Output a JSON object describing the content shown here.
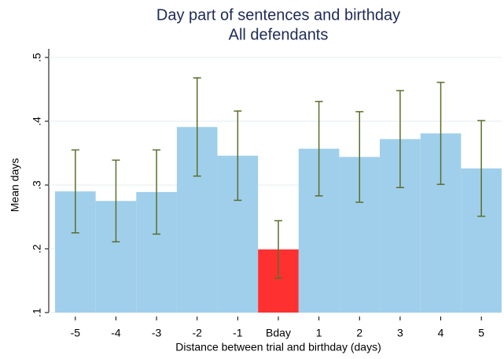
{
  "chart_data": {
    "type": "bar",
    "title": "Day part of sentences and birthday",
    "subtitle": "All defendants",
    "x_label": "Distance between trial and birthday (days)",
    "y_label": "Mean days",
    "categories": [
      "-5",
      "-4",
      "-3",
      "-2",
      "-1",
      "Bday",
      "1",
      "2",
      "3",
      "4",
      "5"
    ],
    "values": [
      0.29,
      0.275,
      0.289,
      0.391,
      0.346,
      0.199,
      0.357,
      0.344,
      0.372,
      0.381,
      0.326
    ],
    "errors": [
      0.065,
      0.064,
      0.066,
      0.077,
      0.07,
      0.045,
      0.074,
      0.071,
      0.076,
      0.08,
      0.075
    ],
    "colors": [
      "#a0cfeb",
      "#a0cfeb",
      "#a0cfeb",
      "#a0cfeb",
      "#a0cfeb",
      "#ff3030",
      "#a0cfeb",
      "#a0cfeb",
      "#a0cfeb",
      "#a0cfeb",
      "#a0cfeb"
    ],
    "error_color": "#5a6e2c",
    "ylim": [
      0.1,
      0.5
    ],
    "yticks": [
      {
        "value": 0.1,
        "label": ".1"
      },
      {
        "value": 0.2,
        "label": ".2"
      },
      {
        "value": 0.3,
        "label": ".3"
      },
      {
        "value": 0.4,
        "label": ".4"
      },
      {
        "value": 0.5,
        "label": ".5"
      }
    ],
    "grid": true
  }
}
